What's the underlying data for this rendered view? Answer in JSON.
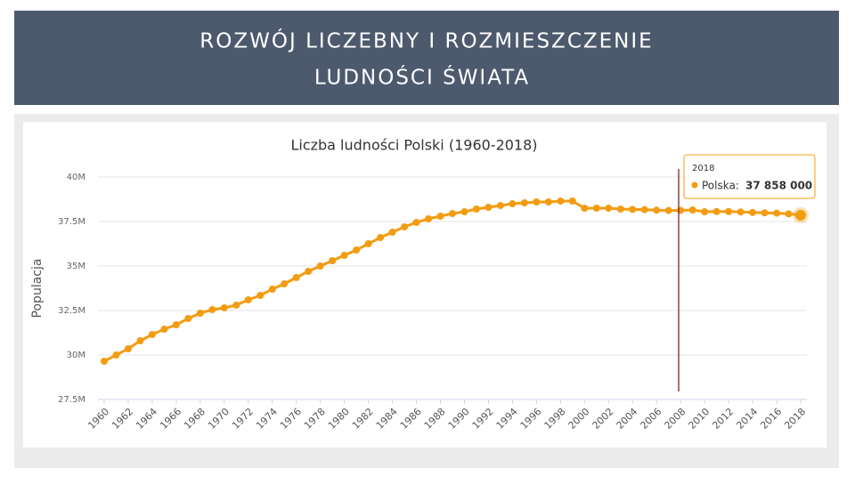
{
  "slide": {
    "title_lines": [
      "ROZWÓJ LICZEBNY I ROZMIESZCZENIE",
      "LUDNOŚCI ŚWIATA"
    ]
  },
  "chart_data": {
    "type": "line",
    "title": "Liczba ludności Polski (1960-2018)",
    "y_label": "Populacja",
    "x": [
      1960,
      1961,
      1962,
      1963,
      1964,
      1965,
      1966,
      1967,
      1968,
      1969,
      1970,
      1971,
      1972,
      1973,
      1974,
      1975,
      1976,
      1977,
      1978,
      1979,
      1980,
      1981,
      1982,
      1983,
      1984,
      1985,
      1986,
      1987,
      1988,
      1989,
      1990,
      1991,
      1992,
      1993,
      1994,
      1995,
      1996,
      1997,
      1998,
      1999,
      2000,
      2001,
      2002,
      2003,
      2004,
      2005,
      2006,
      2007,
      2008,
      2009,
      2010,
      2011,
      2012,
      2013,
      2014,
      2015,
      2016,
      2017,
      2018
    ],
    "values": [
      29650000,
      30000000,
      30350000,
      30800000,
      31150000,
      31450000,
      31700000,
      32050000,
      32350000,
      32550000,
      32650000,
      32800000,
      33100000,
      33350000,
      33700000,
      34000000,
      34350000,
      34700000,
      35000000,
      35300000,
      35600000,
      35900000,
      36250000,
      36600000,
      36900000,
      37200000,
      37450000,
      37650000,
      37800000,
      37950000,
      38050000,
      38200000,
      38300000,
      38400000,
      38500000,
      38550000,
      38600000,
      38600000,
      38650000,
      38650000,
      38250000,
      38250000,
      38250000,
      38200000,
      38180000,
      38170000,
      38140000,
      38120000,
      38130000,
      38150000,
      38050000,
      38060000,
      38060000,
      38040000,
      38010000,
      37990000,
      37970000,
      37930000,
      37858000
    ],
    "color": "#f39c12",
    "xlim": [
      1960,
      2018
    ],
    "xticks": [
      1960,
      1962,
      1964,
      1966,
      1968,
      1970,
      1972,
      1974,
      1976,
      1978,
      1980,
      1982,
      1984,
      1986,
      1988,
      1990,
      1992,
      1994,
      1996,
      1998,
      2000,
      2002,
      2004,
      2006,
      2008,
      2010,
      2012,
      2014,
      2016,
      2018
    ],
    "ylim": [
      27500000,
      40000000
    ],
    "yticks": [
      {
        "value": 27500000,
        "label": "27.5M"
      },
      {
        "value": 30000000,
        "label": "30M"
      },
      {
        "value": 32500000,
        "label": "32.5M"
      },
      {
        "value": 35000000,
        "label": "35M"
      },
      {
        "value": 37500000,
        "label": "37.5M"
      },
      {
        "value": 40000000,
        "label": "40M"
      }
    ],
    "grid": true,
    "tooltip": {
      "title": "2018",
      "label": "Polska:",
      "value": 37858000,
      "value_label": "37 858 000"
    }
  }
}
